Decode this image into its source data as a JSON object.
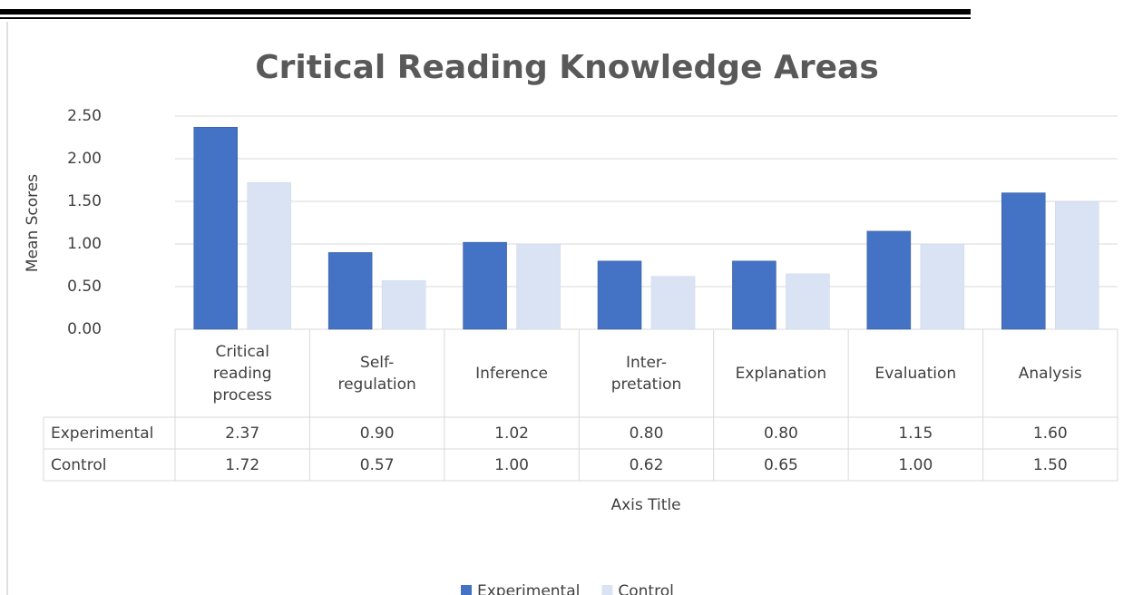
{
  "chart_data": {
    "type": "bar",
    "title": "Critical Reading Knowledge Areas",
    "y_label": "Mean Scores",
    "x_label": "Axis Title",
    "categories": [
      "Critical reading process",
      "Self-regulation",
      "Inference",
      "Inter-pretation",
      "Explanation",
      "Evaluation",
      "Analysis"
    ],
    "series": [
      {
        "name": "Experimental",
        "color": "#4472c4",
        "values": [
          2.37,
          0.9,
          1.02,
          0.8,
          0.8,
          1.15,
          1.6
        ],
        "value_labels": [
          "2.37",
          "0.90",
          "1.02",
          "0.80",
          "0.80",
          "1.15",
          "1.60"
        ]
      },
      {
        "name": "Control",
        "color": "#dae3f3",
        "values": [
          1.72,
          0.57,
          1.0,
          0.62,
          0.65,
          1.0,
          1.5
        ],
        "value_labels": [
          "1.72",
          "0.57",
          "1.00",
          "0.62",
          "0.65",
          "1.00",
          "1.50"
        ]
      }
    ],
    "ylim": [
      0,
      2.5
    ],
    "yticks": [
      {
        "value": 0,
        "label": "0.00"
      },
      {
        "value": 0.5,
        "label": "0.50"
      },
      {
        "value": 1,
        "label": "1.00"
      },
      {
        "value": 1.5,
        "label": "1.50"
      },
      {
        "value": 2,
        "label": "2.00"
      },
      {
        "value": 2.5,
        "label": "2.50"
      }
    ],
    "grid": true,
    "legend": "bottom"
  }
}
